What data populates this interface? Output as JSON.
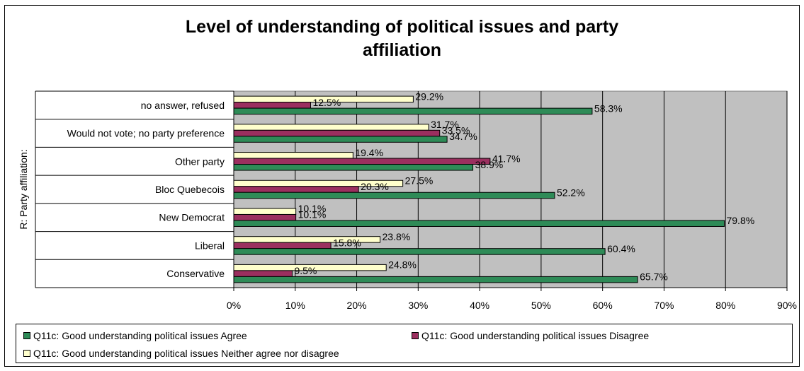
{
  "chart_data": {
    "type": "bar",
    "orientation": "horizontal",
    "title": "Level of understanding of political issues and party affiliation",
    "title_lines": [
      "Level of understanding of political issues and party",
      "affiliation"
    ],
    "ylabel": "R: Party affiliation:",
    "xlabel": "",
    "categories": [
      "no answer, refused",
      "Would not vote; no party preference",
      "Other party",
      "Bloc Quebecois",
      "New Democrat",
      "Liberal",
      "Conservative"
    ],
    "series": [
      {
        "name": "Q11c: Good understanding political issues Agree",
        "color": "#2e8b57",
        "values": [
          58.3,
          34.7,
          38.9,
          52.2,
          79.8,
          60.4,
          65.7
        ]
      },
      {
        "name": "Q11c: Good understanding political issues Disagree",
        "color": "#9b2f5f",
        "values": [
          12.5,
          33.5,
          41.7,
          20.3,
          10.1,
          15.8,
          9.5
        ]
      },
      {
        "name": "Q11c: Good understanding political issues Neither agree nor disagree",
        "color": "#ffffcc",
        "values": [
          29.2,
          31.7,
          19.4,
          27.5,
          10.1,
          23.8,
          24.8
        ]
      }
    ],
    "value_suffix": "%",
    "xlim": [
      0,
      90
    ],
    "x_ticks": [
      0,
      10,
      20,
      30,
      40,
      50,
      60,
      70,
      80,
      90
    ],
    "x_tick_labels": [
      "0%",
      "10%",
      "20%",
      "30%",
      "40%",
      "50%",
      "60%",
      "70%",
      "80%",
      "90%"
    ],
    "plot_background": "#c0c0c0",
    "grid": true,
    "legend_position": "bottom"
  }
}
